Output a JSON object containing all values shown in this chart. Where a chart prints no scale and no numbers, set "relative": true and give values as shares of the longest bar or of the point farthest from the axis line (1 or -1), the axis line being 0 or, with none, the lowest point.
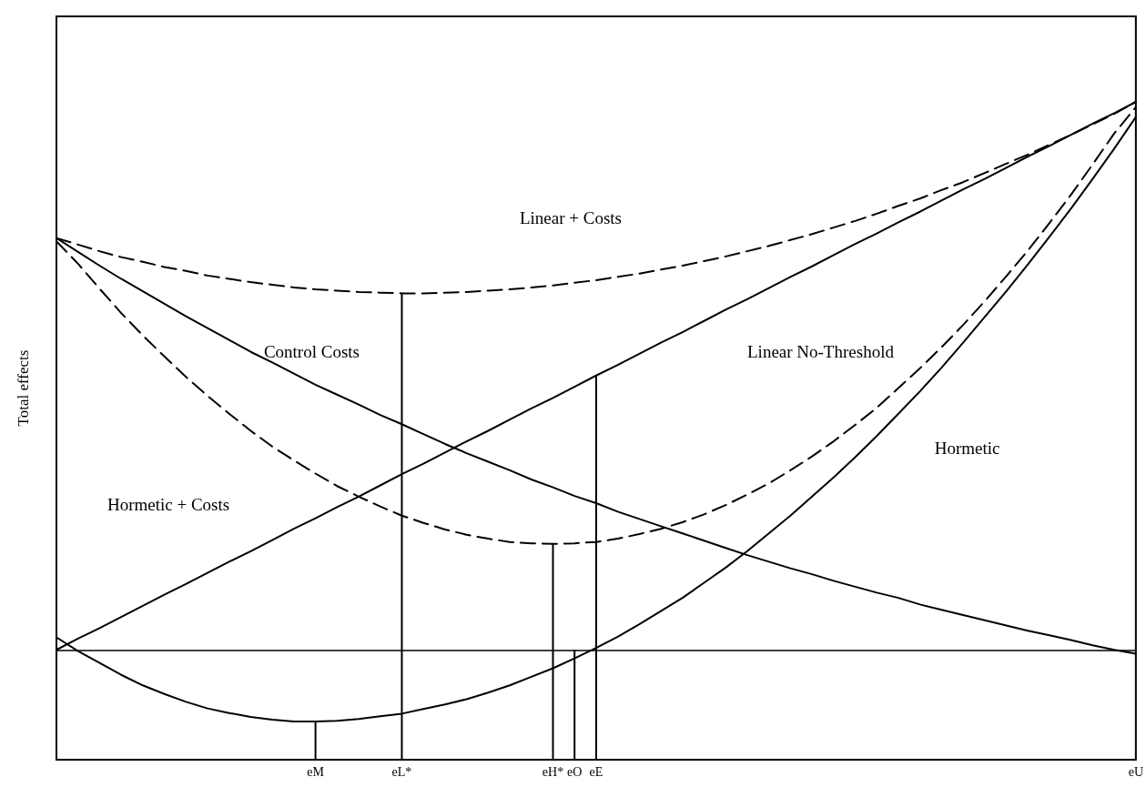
{
  "chart_data": {
    "type": "line",
    "relative": true,
    "ylabel": "Total effects",
    "categories": [
      null,
      null,
      null,
      null,
      null,
      null,
      null,
      null,
      null,
      null,
      null,
      null,
      "eM",
      null,
      null,
      null,
      "eL*",
      null,
      null,
      null,
      null,
      null,
      null,
      "eH*",
      "eO",
      "eE",
      null,
      null,
      null,
      null,
      null,
      null,
      null,
      null,
      null,
      null,
      null,
      null,
      null,
      null,
      null,
      null,
      null,
      null,
      null,
      null,
      null,
      null,
      null,
      null,
      "eU"
    ],
    "marker": "none",
    "grid": false,
    "series": [
      {
        "color": "#000000",
        "line_style": "solid",
        "values": [
          0.167,
          0.184,
          0.2,
          0.217,
          0.234,
          0.251,
          0.267,
          0.284,
          0.301,
          0.317,
          0.334,
          0.351,
          0.367,
          0.384,
          0.4,
          0.417,
          0.434,
          0.45,
          0.467,
          0.484,
          0.5,
          0.517,
          0.534,
          0.55,
          0.567,
          0.584,
          0.6,
          0.617,
          0.634,
          0.65,
          0.667,
          0.684,
          0.7,
          0.717,
          0.734,
          0.75,
          0.767,
          0.784,
          0.8,
          0.817,
          0.833,
          0.85,
          0.867,
          0.883,
          0.9,
          0.917,
          0.933,
          0.95,
          0.967,
          0.983,
          1.0
        ]
      },
      {
        "color": "#000000",
        "line_style": "dashed",
        "values": [
          0.793,
          0.783,
          0.773,
          0.764,
          0.757,
          0.749,
          0.743,
          0.736,
          0.731,
          0.726,
          0.722,
          0.718,
          0.715,
          0.713,
          0.711,
          0.71,
          0.709,
          0.709,
          0.71,
          0.711,
          0.713,
          0.715,
          0.718,
          0.721,
          0.725,
          0.729,
          0.734,
          0.739,
          0.745,
          0.751,
          0.758,
          0.765,
          0.773,
          0.781,
          0.79,
          0.799,
          0.809,
          0.819,
          0.83,
          0.842,
          0.853,
          0.866,
          0.878,
          0.892,
          0.906,
          0.92,
          0.935,
          0.95,
          0.966,
          0.982,
          1.0
        ]
      },
      {
        "color": "#000000",
        "line_style": "solid",
        "values": [
          0.793,
          0.772,
          0.751,
          0.731,
          0.712,
          0.693,
          0.674,
          0.656,
          0.638,
          0.62,
          0.604,
          0.587,
          0.57,
          0.555,
          0.54,
          0.524,
          0.51,
          0.495,
          0.48,
          0.466,
          0.453,
          0.44,
          0.426,
          0.414,
          0.401,
          0.39,
          0.377,
          0.366,
          0.355,
          0.344,
          0.333,
          0.322,
          0.311,
          0.301,
          0.291,
          0.282,
          0.272,
          0.263,
          0.254,
          0.246,
          0.236,
          0.228,
          0.22,
          0.212,
          0.204,
          0.196,
          0.189,
          0.182,
          0.174,
          0.167,
          0.161
        ]
      },
      {
        "color": "#000000",
        "line_style": "solid",
        "values": [
          0.186,
          0.165,
          0.147,
          0.129,
          0.113,
          0.1,
          0.088,
          0.078,
          0.071,
          0.065,
          0.061,
          0.058,
          0.058,
          0.059,
          0.062,
          0.066,
          0.07,
          0.077,
          0.084,
          0.092,
          0.102,
          0.113,
          0.126,
          0.139,
          0.154,
          0.17,
          0.187,
          0.206,
          0.226,
          0.246,
          0.269,
          0.292,
          0.317,
          0.344,
          0.371,
          0.4,
          0.429,
          0.46,
          0.492,
          0.526,
          0.56,
          0.596,
          0.634,
          0.673,
          0.712,
          0.753,
          0.795,
          0.838,
          0.883,
          0.929,
          0.977
        ]
      },
      {
        "color": "#000000",
        "line_style": "dashed",
        "values": [
          0.788,
          0.754,
          0.716,
          0.679,
          0.645,
          0.613,
          0.582,
          0.553,
          0.526,
          0.5,
          0.476,
          0.455,
          0.435,
          0.416,
          0.4,
          0.385,
          0.371,
          0.36,
          0.35,
          0.342,
          0.336,
          0.331,
          0.329,
          0.328,
          0.329,
          0.331,
          0.336,
          0.343,
          0.351,
          0.361,
          0.373,
          0.387,
          0.403,
          0.42,
          0.44,
          0.461,
          0.484,
          0.509,
          0.535,
          0.565,
          0.595,
          0.627,
          0.661,
          0.697,
          0.735,
          0.774,
          0.816,
          0.859,
          0.905,
          0.952,
          0.992
        ]
      },
      {
        "type": "bar",
        "color": "#000000",
        "values": [
          null,
          null,
          null,
          null,
          null,
          null,
          null,
          null,
          null,
          null,
          null,
          null,
          0.058,
          null,
          null,
          null,
          0.709,
          null,
          null,
          null,
          null,
          null,
          null,
          0.328,
          0.167,
          0.584,
          null,
          null,
          null,
          null,
          null,
          null,
          null,
          null,
          null,
          null,
          null,
          null,
          null,
          null,
          null,
          null,
          null,
          null,
          null,
          null,
          null,
          null,
          null,
          null,
          null
        ]
      }
    ],
    "ref_lines": [
      {
        "axis": "y",
        "value": 0.167,
        "color": "#000000",
        "line_style": "solid"
      }
    ],
    "annotations": [
      "Linear + Costs",
      "Control Costs",
      "Linear No-Threshold",
      "Hormetic + Costs",
      "Hormetic"
    ]
  }
}
